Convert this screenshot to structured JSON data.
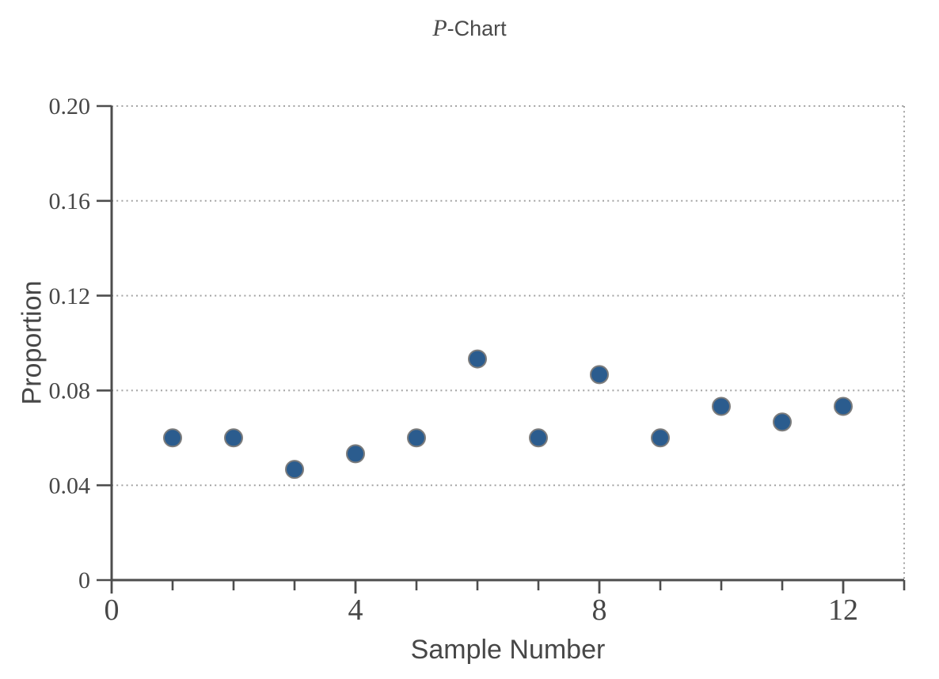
{
  "figure": {
    "title_italic": "P",
    "title_rest": "-Chart"
  },
  "chart_data": {
    "type": "scatter",
    "title": "P-Chart",
    "xlabel": "Sample Number",
    "ylabel": "Proportion",
    "x": [
      1,
      2,
      3,
      4,
      5,
      6,
      7,
      8,
      9,
      10,
      11,
      12
    ],
    "y": [
      0.06,
      0.06,
      0.0467,
      0.0533,
      0.06,
      0.0933,
      0.06,
      0.0867,
      0.06,
      0.0733,
      0.0667,
      0.0733
    ],
    "xlim": [
      0,
      13
    ],
    "ylim": [
      0,
      0.2
    ],
    "x_major_ticks": [
      0,
      4,
      8,
      12
    ],
    "x_major_tick_labels": [
      "0",
      "4",
      "8",
      "12"
    ],
    "x_minor_ticks": [
      1,
      2,
      3,
      5,
      6,
      7,
      9,
      10,
      11,
      13
    ],
    "y_ticks": [
      0,
      0.04,
      0.08,
      0.12,
      0.16,
      0.2
    ],
    "y_tick_labels": [
      "0",
      "0.04",
      "0.08",
      "0.12",
      "0.16",
      "0.20"
    ],
    "grid": "dotted horizontal gridlines at each nonzero y tick, dotted right plot border",
    "legend": "none",
    "colors": {
      "marker_fill": "#2b5c8e",
      "marker_stroke": "#7c7c7c",
      "axis": "#4d4d4d",
      "grid": "#a3a3a3",
      "text": "#474747",
      "background": "#ffffff"
    }
  }
}
